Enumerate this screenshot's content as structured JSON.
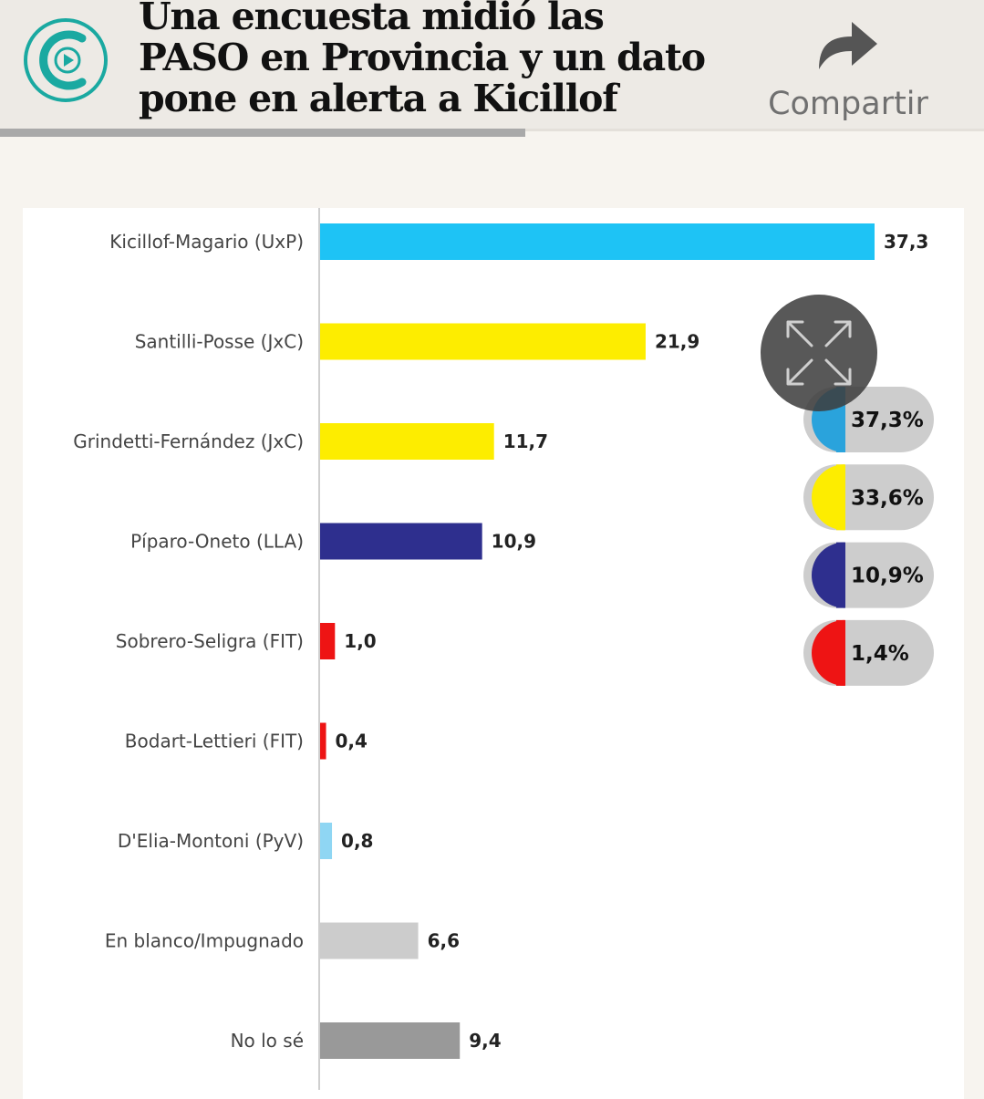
{
  "header": {
    "headline": "Una encuesta midió las PASO en Provincia y un dato pone en alerta a Kicillof",
    "share_label": "Compartir",
    "logo_icon": "clarin-c-play-logo",
    "share_icon": "share-arrow-icon",
    "reading_progress": 0.534
  },
  "chart_data": {
    "type": "bar",
    "orientation": "horizontal",
    "categories": [
      "Kicillof-Magario (UxP)",
      "Santilli-Posse (JxC)",
      "Grindetti-Fernández (JxC)",
      "Píparo-Oneto (LLA)",
      "Sobrero-Seligra (FIT)",
      "Bodart-Lettieri (FIT)",
      "D'Elia-Montoni (PyV)",
      "En blanco/Impugnado",
      "No lo sé"
    ],
    "values": [
      37.3,
      21.9,
      11.7,
      10.9,
      1.0,
      0.4,
      0.8,
      6.6,
      9.4
    ],
    "value_labels": [
      "37,3",
      "21,9",
      "11,7",
      "10,9",
      "1,0",
      "0,4",
      "0,8",
      "6,6",
      "9,4"
    ],
    "colors": [
      "#1ec3f5",
      "#fded00",
      "#fded00",
      "#2e2f8e",
      "#ee1414",
      "#ee1414",
      "#8fd6f3",
      "#cccccc",
      "#999999"
    ],
    "xlim": [
      0,
      37.3
    ],
    "grid": false,
    "legend": "none"
  },
  "pills": [
    {
      "label": "37,3%",
      "color": "#2aa3dc"
    },
    {
      "label": "33,6%",
      "color": "#fded00"
    },
    {
      "label": "10,9%",
      "color": "#2e2f8e"
    },
    {
      "label": "1,4%",
      "color": "#ee1414"
    }
  ],
  "expand_icon": "expand-arrows-icon"
}
